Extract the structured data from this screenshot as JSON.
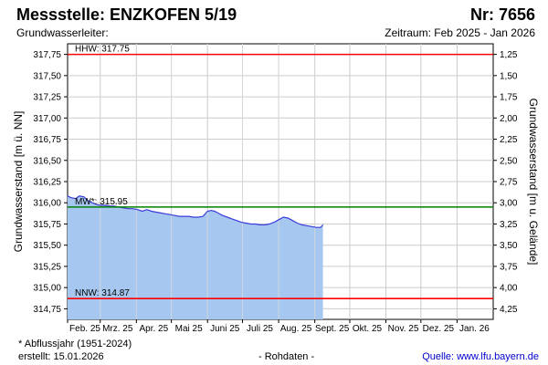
{
  "header": {
    "title": "Messstelle: ENZKOFEN 5/19",
    "number": "Nr: 7656",
    "aquifer": "Grundwasserleiter:",
    "period": "Zeitraum: Feb 2025 - Jan 2026"
  },
  "footer": {
    "footnote": "* Abflussjahr (1951-2024)",
    "created": "erstellt:  15.01.2026",
    "raw": "- Rohdaten -",
    "source": "Quelle: www.lfu.bayern.de"
  },
  "chart_data": {
    "type": "area",
    "ylabel_left": "Grundwasserstand [m ü. NN]",
    "ylabel_right": "Grundwasserstand [m u. Gelände]",
    "ylim": [
      314.625,
      317.875
    ],
    "y_ticks": [
      "317,75",
      "317,50",
      "317,25",
      "317,00",
      "316,75",
      "316,50",
      "316,25",
      "316,00",
      "315,75",
      "315,50",
      "315,25",
      "315,00",
      "314,75"
    ],
    "right_ticks": [
      "1,25",
      "1,50",
      "1,75",
      "2,00",
      "2,25",
      "2,50",
      "2,75",
      "3,00",
      "3,25",
      "3,50",
      "3,75",
      "4,00",
      "4,25"
    ],
    "months": [
      "Feb. 25",
      "Mrz. 25",
      "Apr. 25",
      "Mai 25",
      "Juni 25",
      "Juli 25",
      "Aug. 25",
      "Sept. 25",
      "Okt. 25",
      "Nov. 25",
      "Dez. 25",
      "Jan. 26"
    ],
    "x_domain": [
      "2025-02-01",
      "2026-02-01"
    ],
    "reference_lines": [
      {
        "label": "HHW: 317.75",
        "value": 317.75,
        "color": "#ff0000"
      },
      {
        "label": "MW*: 315.95",
        "value": 315.95,
        "color": "#008000"
      },
      {
        "label": "NNW: 314.87",
        "value": 314.87,
        "color": "#ff0000"
      }
    ],
    "grid": true,
    "series_color": "#a6c8f0",
    "line_color": "#3a3ad8",
    "series": [
      {
        "x": [
          "2025-02-01",
          "2025-02-04",
          "2025-02-08",
          "2025-02-11",
          "2025-02-15",
          "2025-02-18",
          "2025-02-22",
          "2025-02-26",
          "2025-03-01",
          "2025-03-05",
          "2025-03-09",
          "2025-03-13",
          "2025-03-17",
          "2025-03-21",
          "2025-03-25",
          "2025-03-29",
          "2025-04-02",
          "2025-04-06",
          "2025-04-10",
          "2025-04-14",
          "2025-04-18",
          "2025-04-22",
          "2025-04-26",
          "2025-04-30",
          "2025-05-04",
          "2025-05-08",
          "2025-05-12",
          "2025-05-16",
          "2025-05-20",
          "2025-05-24",
          "2025-05-28",
          "2025-06-01",
          "2025-06-04",
          "2025-06-07",
          "2025-06-10",
          "2025-06-14",
          "2025-06-18",
          "2025-06-22",
          "2025-06-26",
          "2025-06-30",
          "2025-07-04",
          "2025-07-08",
          "2025-07-12",
          "2025-07-16",
          "2025-07-20",
          "2025-07-24",
          "2025-07-28",
          "2025-08-01",
          "2025-08-05",
          "2025-08-09",
          "2025-08-13",
          "2025-08-17",
          "2025-08-21",
          "2025-08-25",
          "2025-08-29",
          "2025-09-02",
          "2025-09-06",
          "2025-09-08"
        ],
        "values": [
          316.08,
          316.06,
          316.05,
          316.08,
          316.07,
          316.03,
          316.0,
          315.98,
          315.97,
          315.97,
          315.96,
          315.96,
          315.95,
          315.94,
          315.93,
          315.93,
          315.92,
          315.9,
          315.92,
          315.9,
          315.89,
          315.88,
          315.87,
          315.86,
          315.85,
          315.84,
          315.84,
          315.84,
          315.83,
          315.83,
          315.84,
          315.9,
          315.91,
          315.9,
          315.88,
          315.85,
          315.83,
          315.81,
          315.79,
          315.77,
          315.76,
          315.75,
          315.75,
          315.74,
          315.74,
          315.75,
          315.77,
          315.8,
          315.83,
          315.82,
          315.79,
          315.76,
          315.74,
          315.73,
          315.72,
          315.71,
          315.71,
          315.74
        ]
      }
    ]
  }
}
